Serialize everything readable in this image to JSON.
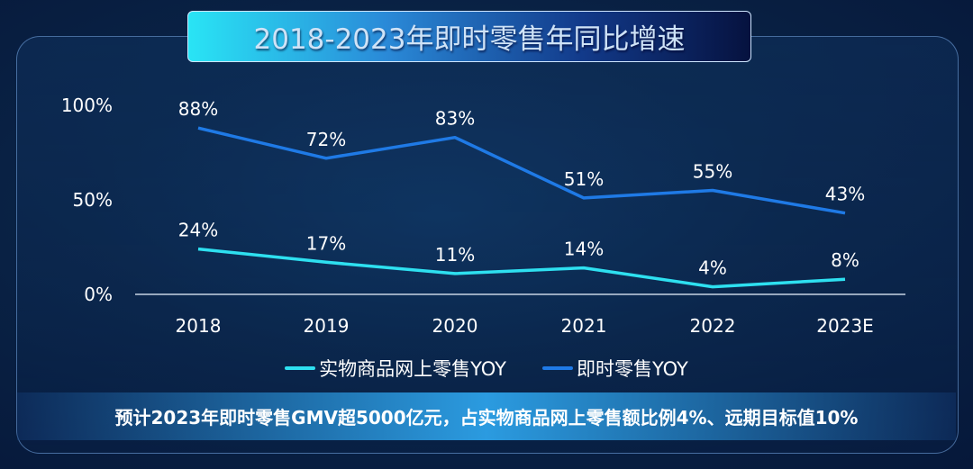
{
  "chart_data": {
    "type": "line",
    "title": "2018-2023年即时零售年同比增速",
    "categories": [
      "2018",
      "2019",
      "2020",
      "2021",
      "2022",
      "2023E"
    ],
    "yticks": [
      "0%",
      "50%",
      "100%"
    ],
    "ylim": [
      0,
      100
    ],
    "grid": false,
    "legend_placement": "bottom",
    "series": [
      {
        "name": "实物商品网上零售YOY",
        "color": "#2ee0f0",
        "values": [
          24,
          17,
          11,
          14,
          4,
          8
        ],
        "labels": [
          "24%",
          "17%",
          "11%",
          "14%",
          "4%",
          "8%"
        ]
      },
      {
        "name": "即时零售YOY",
        "color": "#1f7ae6",
        "values": [
          88,
          72,
          83,
          51,
          55,
          43
        ],
        "labels": [
          "88%",
          "72%",
          "83%",
          "51%",
          "55%",
          "43%"
        ]
      }
    ]
  },
  "footer": {
    "note": "预计2023年即时零售GMV超5000亿元，占实物商品网上零售额比例4%、远期目标值10%"
  }
}
